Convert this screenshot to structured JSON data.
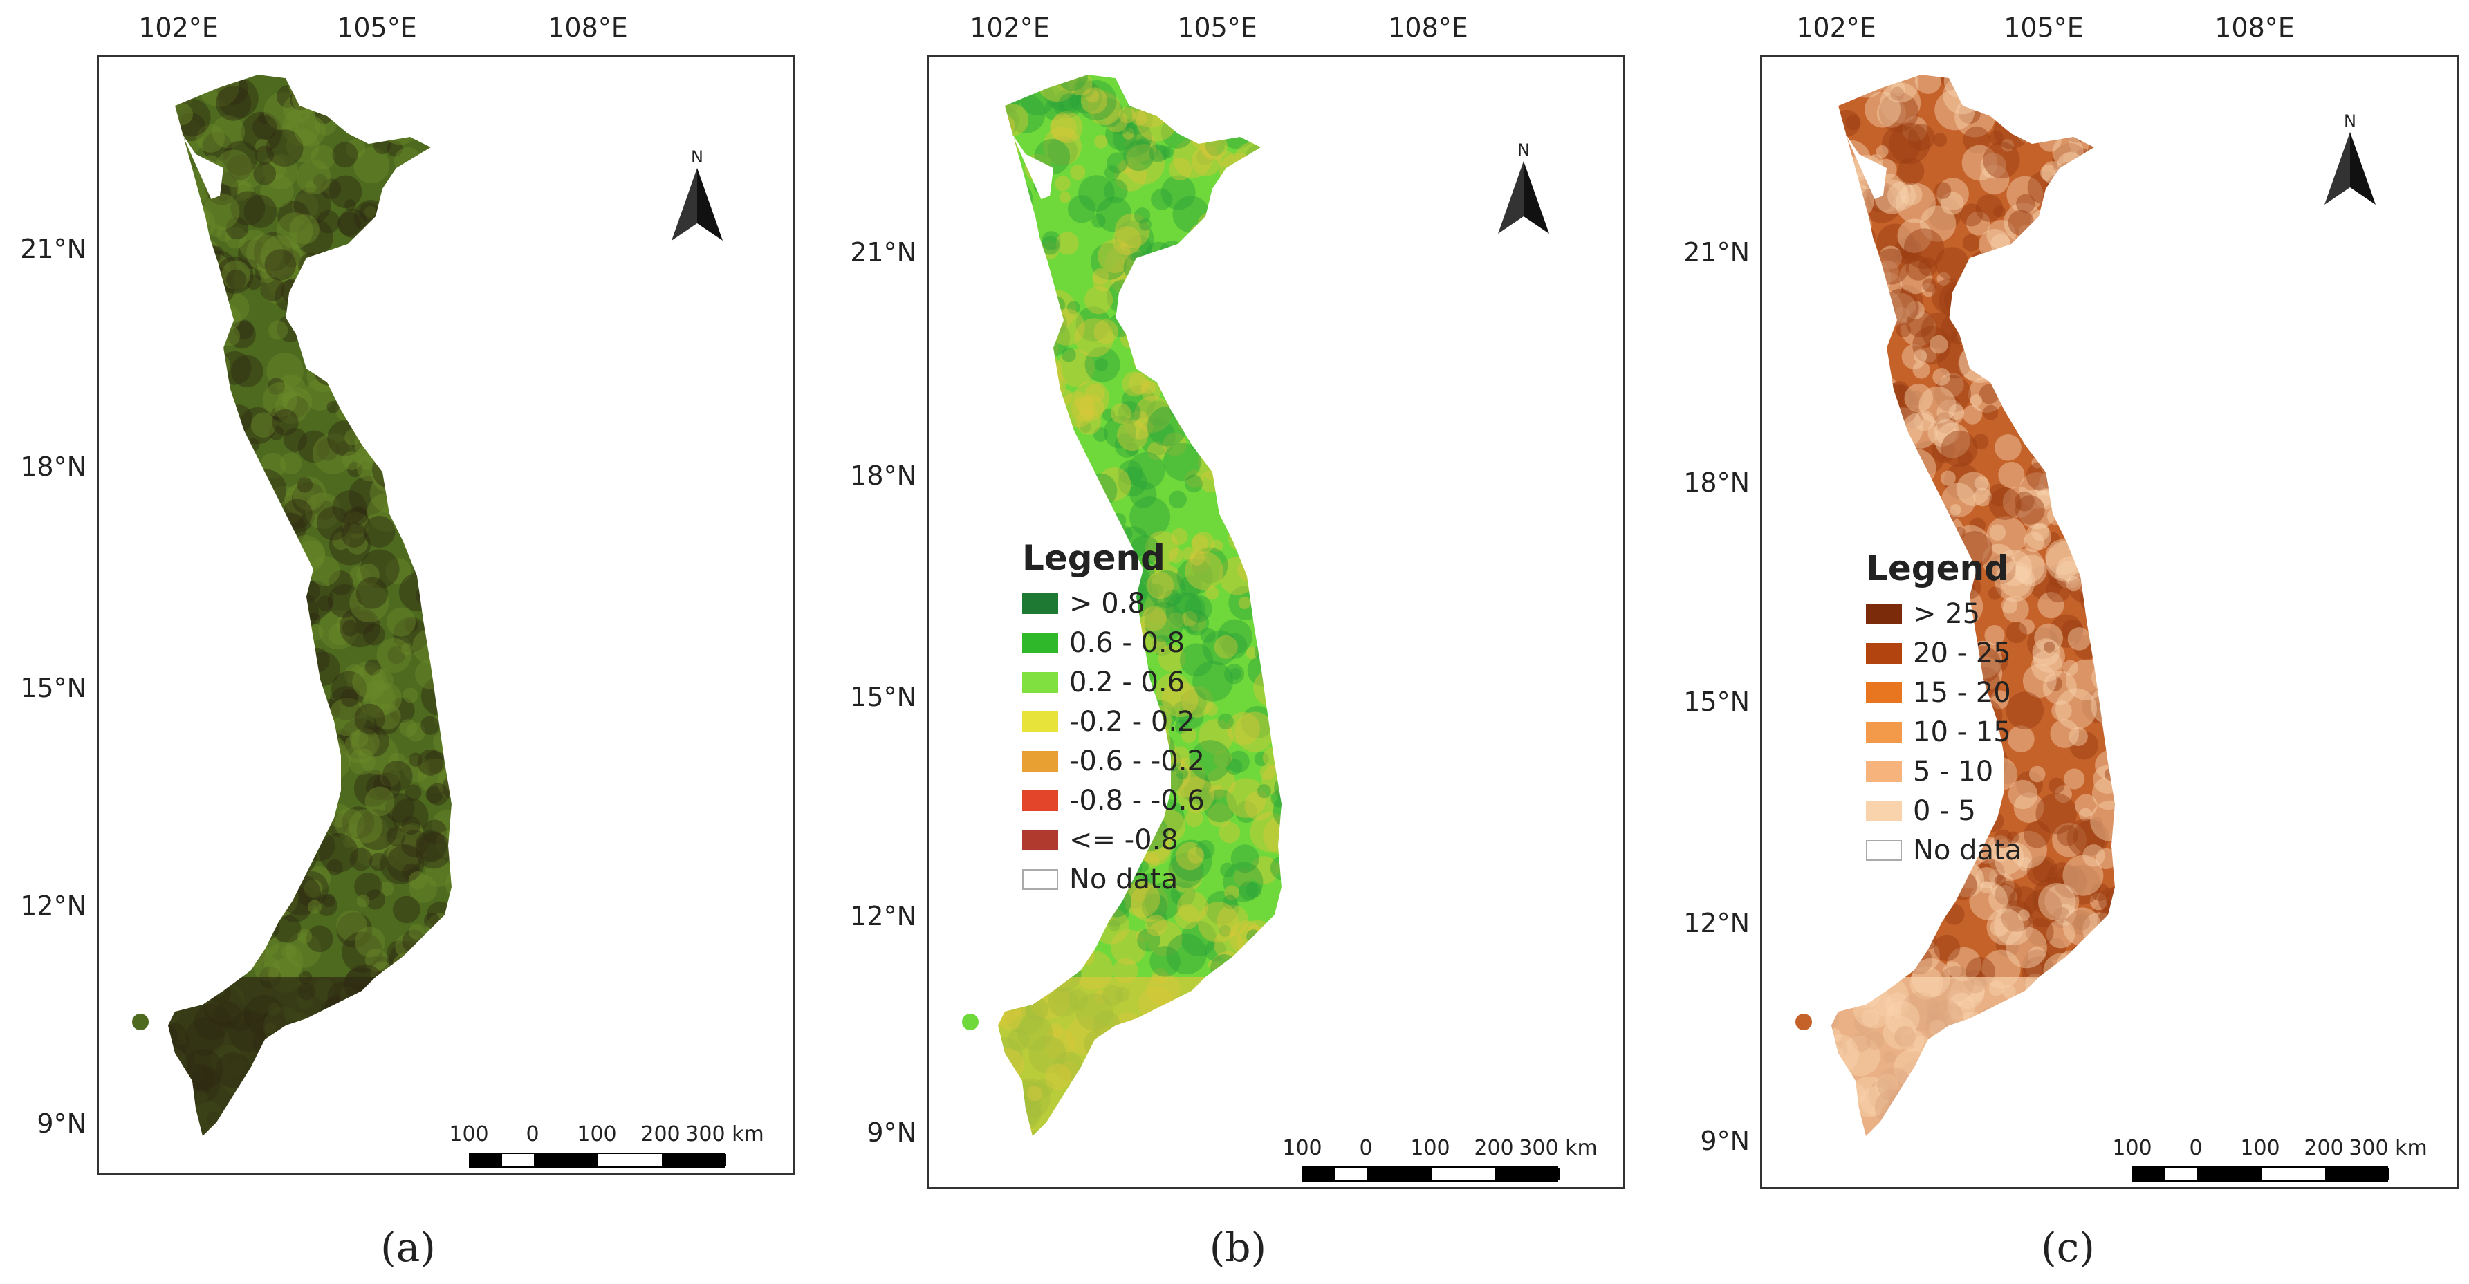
{
  "panels": [
    {
      "id": "a",
      "caption": "(a)",
      "legend": null,
      "map_style": "truecolor"
    },
    {
      "id": "b",
      "caption": "(b)",
      "map_style": "ndvi",
      "legend": {
        "title": "Legend",
        "items": [
          {
            "label": "> 0.8",
            "color": "#1e7a32"
          },
          {
            "label": "0.6 - 0.8",
            "color": "#2fb82a"
          },
          {
            "label": "0.2 - 0.6",
            "color": "#7fe03f"
          },
          {
            "label": "-0.2 - 0.2",
            "color": "#e8e33a"
          },
          {
            "label": "-0.6 - -0.2",
            "color": "#e8a032"
          },
          {
            "label": "-0.8 - -0.6",
            "color": "#e2452a"
          },
          {
            "label": "<= -0.8",
            "color": "#b03a2e"
          },
          {
            "label": "No data",
            "color": "#ffffff"
          }
        ]
      }
    },
    {
      "id": "c",
      "caption": "(c)",
      "map_style": "slope",
      "legend": {
        "title": "Legend",
        "items": [
          {
            "label": "> 25",
            "color": "#7b2a0a"
          },
          {
            "label": "20 - 25",
            "color": "#b2440f"
          },
          {
            "label": "15 - 20",
            "color": "#e8751f"
          },
          {
            "label": "10 - 15",
            "color": "#f29a4a"
          },
          {
            "label": "5 - 10",
            "color": "#f6b47c"
          },
          {
            "label": "0 - 5",
            "color": "#f9d3ac"
          },
          {
            "label": "No data",
            "color": "#ffffff"
          }
        ]
      }
    }
  ],
  "grid": {
    "lon_labels": [
      "102°E",
      "105°E",
      "108°E"
    ],
    "lat_labels": [
      "21°N",
      "18°N",
      "15°N",
      "12°N",
      "9°N"
    ]
  },
  "north_arrow": {
    "letter": "N"
  },
  "scale_bar": {
    "labels": [
      "100",
      "0",
      "100",
      "200",
      "300 km"
    ]
  },
  "map_colors": {
    "truecolor": {
      "base": "#4d6a1f",
      "dark": "#2e2a12",
      "light": "#6a8a2a"
    },
    "ndvi": {
      "base": "#6fd83a",
      "dark": "#2aa23a",
      "light": "#d8c83a"
    },
    "slope": {
      "base": "#c4622a",
      "dark": "#9a3c12",
      "light": "#f9d3ac"
    }
  }
}
